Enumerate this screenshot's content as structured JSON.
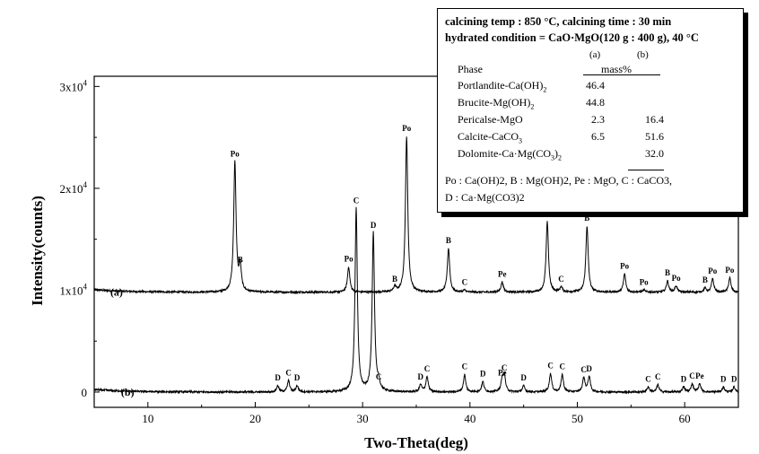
{
  "chart_data": {
    "type": "line",
    "title": "",
    "xlabel": "Two-Theta(deg)",
    "ylabel": "Intensity(counts)",
    "xlim": [
      5,
      65
    ],
    "ylim": [
      -1500,
      31000
    ],
    "x_ticks": [
      10,
      20,
      30,
      40,
      50,
      60
    ],
    "y_ticks": [
      {
        "value": 0,
        "label": "0",
        "exp": ""
      },
      {
        "value": 10000,
        "label": "1x10",
        "exp": "4"
      },
      {
        "value": 20000,
        "label": "2x10",
        "exp": "4"
      },
      {
        "value": 30000,
        "label": "3x10",
        "exp": "4"
      }
    ],
    "series": [
      {
        "name": "(a)",
        "label_x": 6.5,
        "baseline": 9800,
        "peaks": [
          {
            "x": 18.1,
            "y": 22600,
            "label": "Po"
          },
          {
            "x": 18.6,
            "y": 12200,
            "label": "B"
          },
          {
            "x": 28.7,
            "y": 12300,
            "label": "Po"
          },
          {
            "x": 33.0,
            "y": 10300,
            "label": "B"
          },
          {
            "x": 34.1,
            "y": 25100,
            "label": "Po"
          },
          {
            "x": 38.0,
            "y": 14100,
            "label": "B"
          },
          {
            "x": 39.5,
            "y": 10000,
            "label": "C"
          },
          {
            "x": 43.0,
            "y": 10800,
            "label": "Pe"
          },
          {
            "x": 47.2,
            "y": 16700,
            "label": "Po"
          },
          {
            "x": 48.5,
            "y": 10300,
            "label": "C"
          },
          {
            "x": 50.9,
            "y": 16300,
            "label": "B"
          },
          {
            "x": 54.4,
            "y": 11600,
            "label": "Po"
          },
          {
            "x": 56.2,
            "y": 10000,
            "label": "Po"
          },
          {
            "x": 58.4,
            "y": 10900,
            "label": "B"
          },
          {
            "x": 59.2,
            "y": 10400,
            "label": "Po"
          },
          {
            "x": 61.9,
            "y": 10200,
            "label": "B"
          },
          {
            "x": 62.6,
            "y": 11100,
            "label": "Po"
          },
          {
            "x": 64.2,
            "y": 11200,
            "label": "Po"
          }
        ]
      },
      {
        "name": "(b)",
        "label_x": 7.5,
        "baseline": 0,
        "peaks": [
          {
            "x": 22.1,
            "y": 600,
            "label": "D"
          },
          {
            "x": 23.1,
            "y": 1100,
            "label": "C"
          },
          {
            "x": 23.9,
            "y": 600,
            "label": "D"
          },
          {
            "x": 29.4,
            "y": 18000,
            "label": "C"
          },
          {
            "x": 31.0,
            "y": 15600,
            "label": "D"
          },
          {
            "x": 31.5,
            "y": 700,
            "label": "C"
          },
          {
            "x": 35.4,
            "y": 700,
            "label": "D"
          },
          {
            "x": 36.0,
            "y": 1500,
            "label": "C"
          },
          {
            "x": 39.5,
            "y": 1700,
            "label": "C"
          },
          {
            "x": 41.2,
            "y": 1000,
            "label": "D"
          },
          {
            "x": 43.0,
            "y": 1100,
            "label": "Pe"
          },
          {
            "x": 43.2,
            "y": 1600,
            "label": "C"
          },
          {
            "x": 45.0,
            "y": 600,
            "label": "D"
          },
          {
            "x": 47.5,
            "y": 1800,
            "label": "C"
          },
          {
            "x": 48.6,
            "y": 1700,
            "label": "C"
          },
          {
            "x": 50.6,
            "y": 1400,
            "label": "C"
          },
          {
            "x": 51.1,
            "y": 1500,
            "label": "D"
          },
          {
            "x": 56.6,
            "y": 500,
            "label": "C"
          },
          {
            "x": 57.5,
            "y": 700,
            "label": "C"
          },
          {
            "x": 59.9,
            "y": 500,
            "label": "D"
          },
          {
            "x": 60.7,
            "y": 800,
            "label": "C"
          },
          {
            "x": 61.4,
            "y": 800,
            "label": "Pe"
          },
          {
            "x": 63.6,
            "y": 500,
            "label": "D"
          },
          {
            "x": 64.6,
            "y": 500,
            "label": "D"
          }
        ]
      }
    ]
  },
  "legend": {
    "line1": "calcining temp : 850 °C, calcining time : 30 min",
    "line2": "hydrated condition = CaO·MgO(120 g : 400 g), 40 °C",
    "col_a": "(a)",
    "col_b": "(b)",
    "phase_header": "Phase",
    "mass_header": "mass%",
    "rows": [
      {
        "phase": "Portlandite-Ca(OH)2",
        "a": "46.4",
        "b": ""
      },
      {
        "phase": "Brucite-Mg(OH)2",
        "a": "44.8",
        "b": ""
      },
      {
        "phase": "Pericalse-MgO",
        "a": "2.3",
        "b": "16.4"
      },
      {
        "phase": "Calcite-CaCO3",
        "a": "6.5",
        "b": "51.6"
      },
      {
        "phase": "Dolomite-Ca·Mg(CO3)2",
        "a": "",
        "b": "32.0"
      }
    ],
    "abbrev1": "Po : Ca(OH)2, B : Mg(OH)2, Pe : MgO, C : CaCO3,",
    "abbrev2": "D :  Ca·Mg(CO3)2"
  }
}
